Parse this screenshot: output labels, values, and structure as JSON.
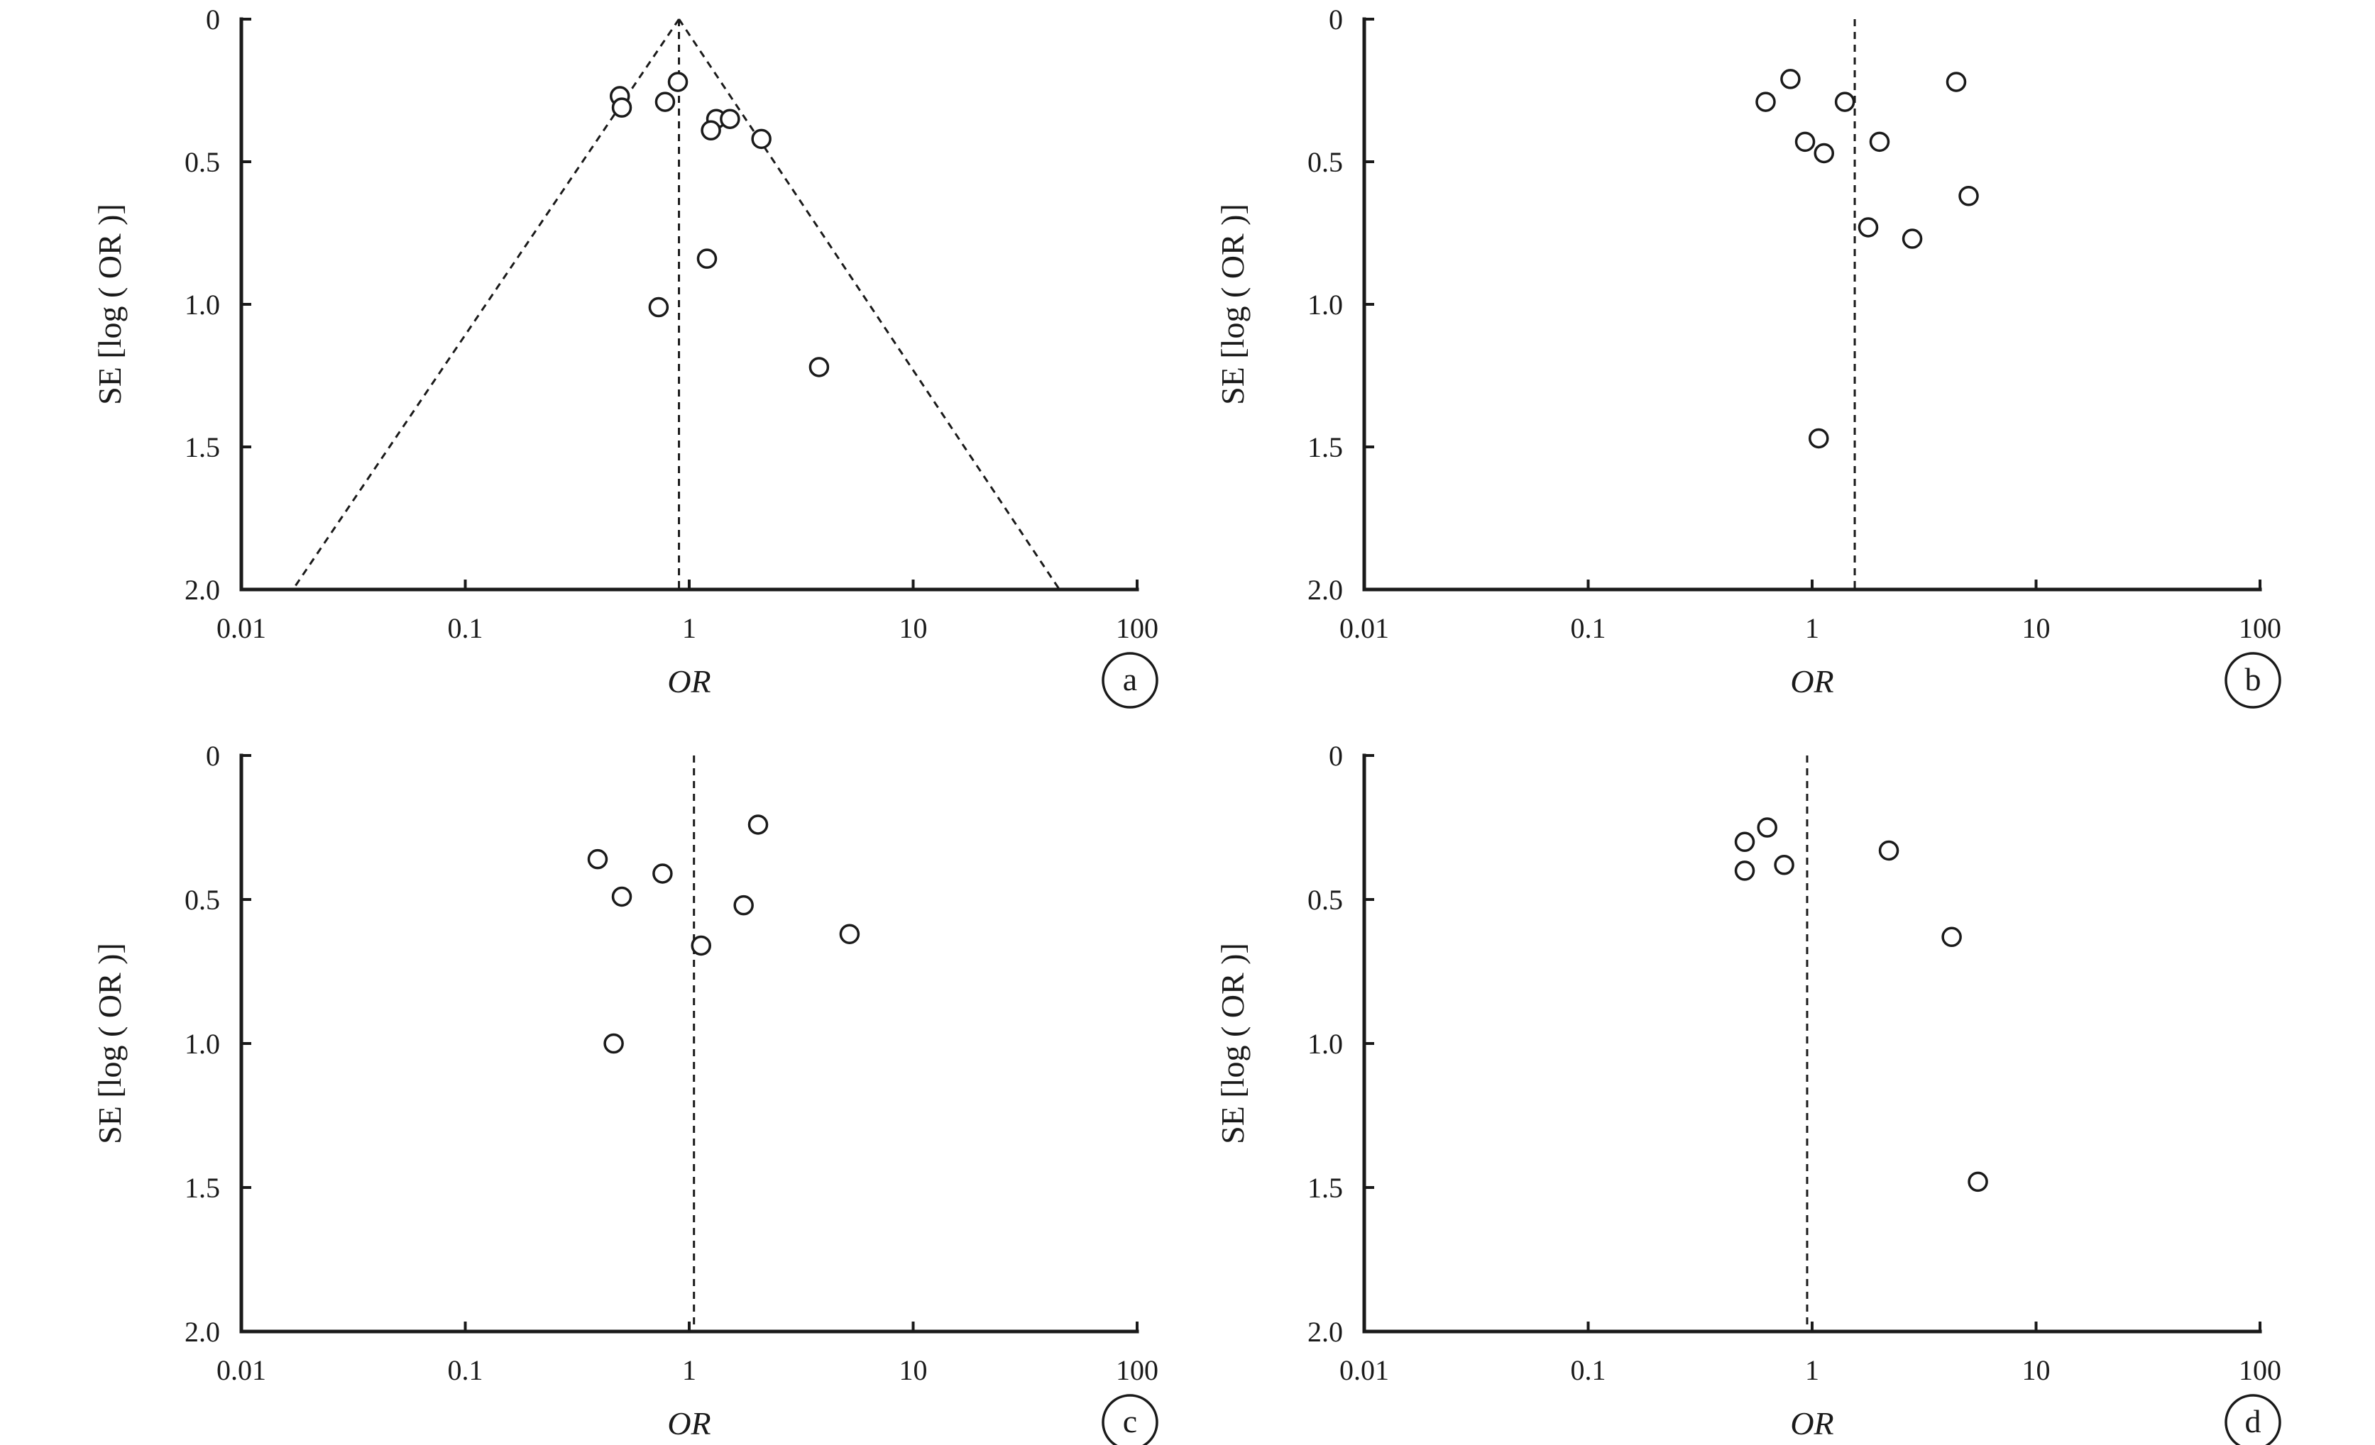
{
  "chart_data": [
    {
      "type": "scatter",
      "panel_label": "a",
      "xlabel": "OR",
      "ylabel": "SE [log ( OR )]",
      "x_scale": "log",
      "xlim": [
        0.01,
        100
      ],
      "ylim": [
        0,
        2.0
      ],
      "y_inverted": true,
      "x_ticks": [
        "0.01",
        "0.1",
        "1",
        "10",
        "100"
      ],
      "y_ticks": [
        "0",
        "0.5",
        "1.0",
        "1.5",
        "2.0"
      ],
      "reference_or": 0.9,
      "funnel": true,
      "funnel_apex_se": 0,
      "funnel_base_se": 2.0,
      "funnel_base_or": [
        0.017,
        45
      ],
      "points": [
        {
          "or": 0.49,
          "se": 0.27
        },
        {
          "or": 0.5,
          "se": 0.31
        },
        {
          "or": 0.78,
          "se": 0.29
        },
        {
          "or": 0.89,
          "se": 0.22
        },
        {
          "or": 1.32,
          "se": 0.35
        },
        {
          "or": 1.52,
          "se": 0.35
        },
        {
          "or": 1.25,
          "se": 0.39
        },
        {
          "or": 2.1,
          "se": 0.42
        },
        {
          "or": 1.2,
          "se": 0.84
        },
        {
          "or": 0.73,
          "se": 1.01
        },
        {
          "or": 3.8,
          "se": 1.22
        }
      ]
    },
    {
      "type": "scatter",
      "panel_label": "b",
      "xlabel": "OR",
      "ylabel": "SE [log ( OR )]",
      "x_scale": "log",
      "xlim": [
        0.01,
        100
      ],
      "ylim": [
        0,
        2.0
      ],
      "y_inverted": true,
      "x_ticks": [
        "0.01",
        "0.1",
        "1",
        "10",
        "100"
      ],
      "y_ticks": [
        "0",
        "0.5",
        "1.0",
        "1.5",
        "2.0"
      ],
      "reference_or": 1.55,
      "funnel": false,
      "points": [
        {
          "or": 0.62,
          "se": 0.29
        },
        {
          "or": 0.8,
          "se": 0.21
        },
        {
          "or": 1.4,
          "se": 0.29
        },
        {
          "or": 4.4,
          "se": 0.22
        },
        {
          "or": 0.93,
          "se": 0.43
        },
        {
          "or": 1.13,
          "se": 0.47
        },
        {
          "or": 2.0,
          "se": 0.43
        },
        {
          "or": 5.0,
          "se": 0.62
        },
        {
          "or": 1.78,
          "se": 0.73
        },
        {
          "or": 2.8,
          "se": 0.77
        },
        {
          "or": 1.07,
          "se": 1.47
        }
      ]
    },
    {
      "type": "scatter",
      "panel_label": "c",
      "xlabel": "OR",
      "ylabel": "SE [log ( OR )]",
      "x_scale": "log",
      "xlim": [
        0.01,
        100
      ],
      "ylim": [
        0,
        2.0
      ],
      "y_inverted": true,
      "x_ticks": [
        "0.01",
        "0.1",
        "1",
        "10",
        "100"
      ],
      "y_ticks": [
        "0",
        "0.5",
        "1.0",
        "1.5",
        "2.0"
      ],
      "reference_or": 1.05,
      "funnel": false,
      "points": [
        {
          "or": 0.39,
          "se": 0.36
        },
        {
          "or": 0.76,
          "se": 0.41
        },
        {
          "or": 2.03,
          "se": 0.24
        },
        {
          "or": 0.5,
          "se": 0.49
        },
        {
          "or": 1.75,
          "se": 0.52
        },
        {
          "or": 5.2,
          "se": 0.62
        },
        {
          "or": 1.13,
          "se": 0.66
        },
        {
          "or": 0.46,
          "se": 1.0
        }
      ]
    },
    {
      "type": "scatter",
      "panel_label": "d",
      "xlabel": "OR",
      "ylabel": "SE [log ( OR )]",
      "x_scale": "log",
      "xlim": [
        0.01,
        100
      ],
      "ylim": [
        0,
        2.0
      ],
      "y_inverted": true,
      "x_ticks": [
        "0.01",
        "0.1",
        "1",
        "10",
        "100"
      ],
      "y_ticks": [
        "0",
        "0.5",
        "1.0",
        "1.5",
        "2.0"
      ],
      "reference_or": 0.95,
      "funnel": false,
      "points": [
        {
          "or": 0.5,
          "se": 0.3
        },
        {
          "or": 0.63,
          "se": 0.25
        },
        {
          "or": 0.5,
          "se": 0.4
        },
        {
          "or": 0.75,
          "se": 0.38
        },
        {
          "or": 2.2,
          "se": 0.33
        },
        {
          "or": 4.2,
          "se": 0.63
        },
        {
          "or": 5.5,
          "se": 1.48
        }
      ]
    }
  ]
}
